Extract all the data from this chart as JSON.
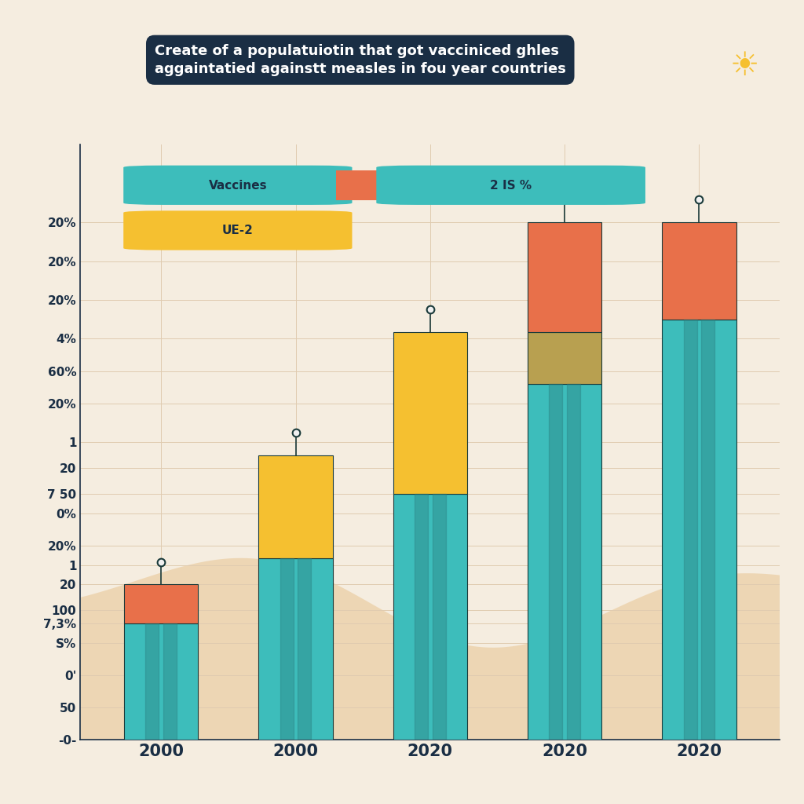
{
  "title": "Create of a populatuiotin that got vacciniced ghles\naggaintatied againstt measles in fou year countries",
  "categories": [
    "2000",
    "2000",
    "2020",
    "2020",
    "2020"
  ],
  "teal_values": [
    18,
    28,
    38,
    55,
    65
  ],
  "orange_values": [
    6,
    0,
    0,
    17,
    15
  ],
  "yellow_values": [
    0,
    16,
    25,
    0,
    0
  ],
  "gold_values": [
    0,
    0,
    0,
    8,
    0
  ],
  "color_teal": "#3dbdbb",
  "color_teal_dark": "#2a8080",
  "color_orange": "#e8704a",
  "color_gold": "#b8a050",
  "color_yellow": "#f5c030",
  "background": "#f5ede0",
  "title_bg": "#1a2e44",
  "bar_width": 0.55,
  "legend_vaccine_label": "Vaccines",
  "legend_2is_label": "2 IS %",
  "legend_ue2_label": "UE-2",
  "sun_color": "#f5c030",
  "grid_color": "#e0cbb0",
  "ytick_positions": [
    0,
    5,
    10,
    15,
    20,
    25,
    30,
    35,
    40,
    45,
    50,
    55,
    60,
    65,
    70,
    75,
    80,
    85,
    90
  ],
  "ytick_labels": [
    "-0-",
    "50",
    "0'",
    "S%",
    "7,3%",
    "100",
    "20",
    "1",
    "20%",
    "0%",
    "7 50",
    "20%",
    "1",
    "20%",
    "60%",
    "4%",
    "20%",
    "20%",
    "20%"
  ]
}
